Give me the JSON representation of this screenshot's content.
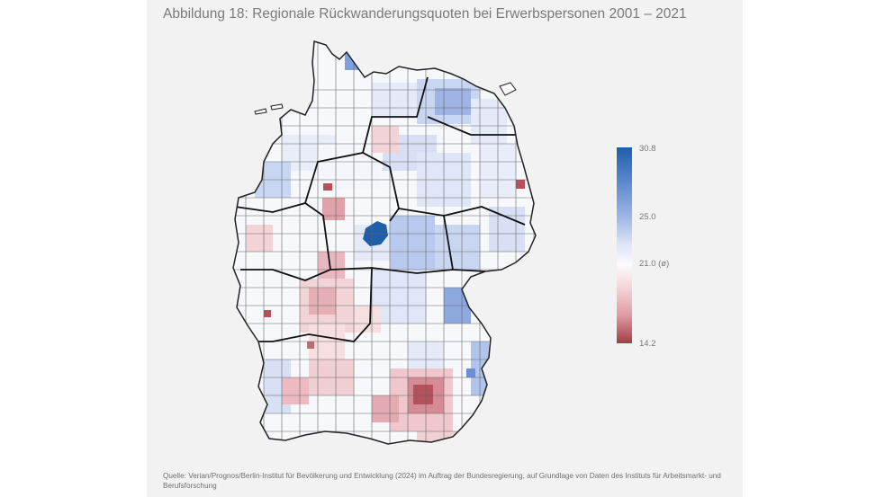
{
  "figure": {
    "title": "Abbildung 18: Regionale Rückwanderungsquoten bei Erwerbspersonen 2001 – 2021",
    "source": "Quelle: Verian/Prognos/Berlin-Institut für Bevölkerung und Entwicklung (2024) im Auftrag der Bundesregierung, auf Grundlage von Daten des Instituts für Arbeitsmarkt- und Berufsforschung"
  },
  "legend": {
    "max_label": "30.8",
    "high_label": "25.0",
    "mid_label": "21.0 (ø)",
    "min_label": "14.2",
    "scale": {
      "max": 30.8,
      "high": 25.0,
      "mid": 21.0,
      "min": 14.2
    },
    "colors": {
      "max": "#1f5ea8",
      "high": "#9fb8e6",
      "mid": "#fbfbfd",
      "low": "#dd9aa3",
      "min": "#a33b43"
    }
  },
  "map": {
    "highlight_colors": {
      "darkest_blue": "#1f5ea8",
      "mid_blue": "#6b8fd6",
      "light_blue": "#c9d6f2",
      "pale_blue": "#e4eaf8",
      "white": "#f9f9fb",
      "pale_red": "#f2d3d6",
      "light_red": "#dea1a8",
      "dark_red": "#a94750"
    }
  }
}
